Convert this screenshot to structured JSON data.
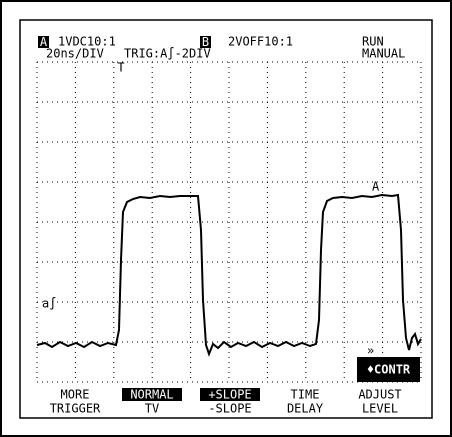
{
  "header": {
    "channel_a_label": "A",
    "channel_a": "1VDC10:1",
    "channel_b_label": "B",
    "channel_b": "2VOFF10:1",
    "status": "RUN",
    "timebase": "20ns/DIV",
    "trigger": "TRIG:A∫-2DIV",
    "mode": "MANUAL"
  },
  "markers": {
    "trigger_point": "T",
    "trigger_level": "a∫",
    "cursor": "A",
    "contrast": "♦CONTR"
  },
  "softkeys": [
    {
      "line1": "MORE",
      "line2": "TRIGGER"
    },
    {
      "line1": "NORMAL",
      "line2": "TV"
    },
    {
      "line1": "+SLOPE",
      "line2": "-SLOPE"
    },
    {
      "line1": "TIME",
      "line2": "DELAY"
    },
    {
      "line1": "ADJUST",
      "line2": "LEVEL"
    }
  ]
}
